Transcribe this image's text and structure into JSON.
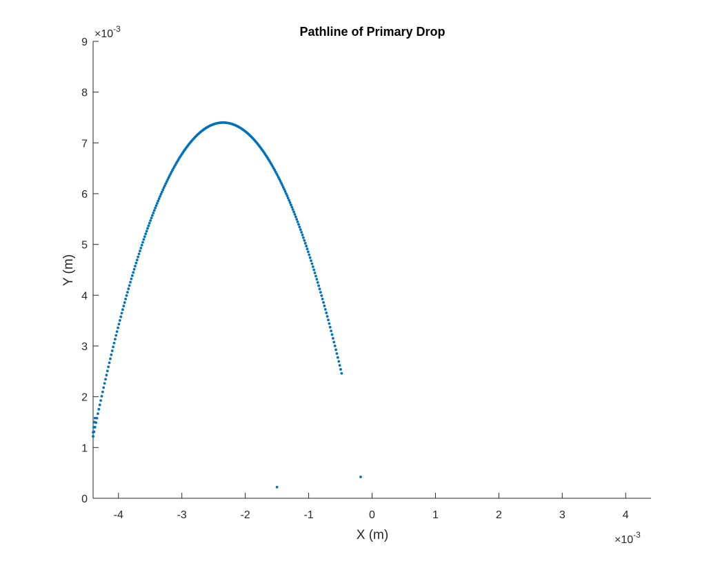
{
  "chart_data": {
    "type": "scatter",
    "title": "Pathline of Primary Drop",
    "xlabel": "X (m)",
    "ylabel": "Y (m)",
    "xlim": [
      -0.0044,
      0.0044
    ],
    "ylim": [
      0,
      0.009
    ],
    "x_ticks": [
      -0.004,
      -0.003,
      -0.002,
      -0.001,
      0,
      0.001,
      0.002,
      0.003,
      0.004
    ],
    "x_tick_labels": [
      "-4",
      "-3",
      "-2",
      "-1",
      "0",
      "1",
      "2",
      "3",
      "4"
    ],
    "y_ticks": [
      0,
      0.001,
      0.002,
      0.003,
      0.004,
      0.005,
      0.006,
      0.007,
      0.008,
      0.009
    ],
    "y_tick_labels": [
      "0",
      "1",
      "2",
      "3",
      "4",
      "5",
      "6",
      "7",
      "8",
      "9"
    ],
    "x_exponent": {
      "base": "×10",
      "power": "-3"
    },
    "y_exponent": {
      "base": "×10",
      "power": "-3"
    },
    "grid": false,
    "marker_color": "#0072BD",
    "series": [
      {
        "name": "",
        "trajectory": {
          "form": "parabola",
          "apex": [
            -0.00235,
            0.0074
          ],
          "start": [
            -0.0044,
            0.00122
          ],
          "end": [
            -0.00048,
            0.00246
          ],
          "point_count": 260
        },
        "points": [
          [
            -0.0044,
            0.00122
          ],
          [
            -0.0044,
            0.0013
          ],
          [
            -0.00439,
            0.0014
          ],
          [
            -0.00438,
            0.0015
          ],
          [
            -0.00437,
            0.00158
          ],
          [
            -0.0015,
            0.00022
          ],
          [
            -0.00018,
            0.00042
          ]
        ]
      }
    ]
  }
}
